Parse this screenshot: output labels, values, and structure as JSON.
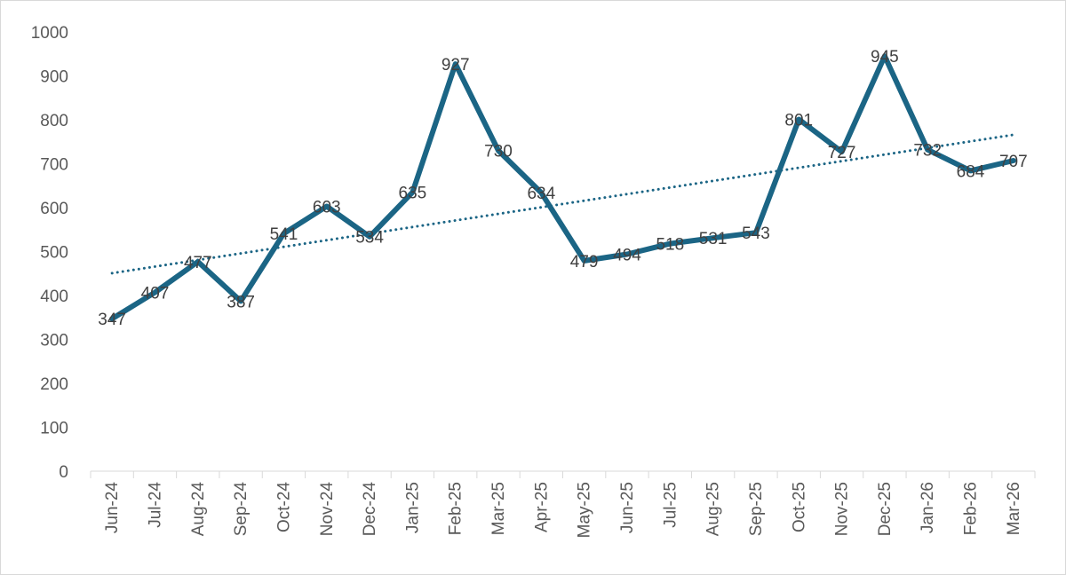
{
  "chart_data": {
    "type": "line",
    "categories": [
      "Jun-24",
      "Jul-24",
      "Aug-24",
      "Sep-24",
      "Oct-24",
      "Nov-24",
      "Dec-24",
      "Jan-25",
      "Feb-25",
      "Mar-25",
      "Apr-25",
      "May-25",
      "Jun-25",
      "Jul-25",
      "Aug-25",
      "Sep-25",
      "Oct-25",
      "Nov-25",
      "Dec-25",
      "Jan-26",
      "Feb-26",
      "Mar-26"
    ],
    "series": [
      {
        "values": [
          347,
          407,
          477,
          387,
          541,
          603,
          534,
          635,
          927,
          730,
          634,
          479,
          494,
          518,
          531,
          543,
          801,
          727,
          945,
          732,
          684,
          707
        ],
        "data_labels": [
          "347",
          "407",
          "477",
          "387",
          "541",
          "603",
          "534",
          "635",
          "927",
          "730",
          "634",
          "479",
          "494",
          "518",
          "531",
          "543",
          "801",
          "727",
          "945",
          "732",
          "684",
          "707"
        ],
        "color": "#1b6585"
      }
    ],
    "trendline": {
      "type": "linear",
      "style": "dotted",
      "color": "#1b6585"
    },
    "y_ticks": [
      "0",
      "100",
      "200",
      "300",
      "400",
      "500",
      "600",
      "700",
      "800",
      "900",
      "1000"
    ],
    "ylim": [
      0,
      1000
    ],
    "title": "",
    "xlabel": "",
    "ylabel": "",
    "grid": false,
    "legend": "none"
  }
}
